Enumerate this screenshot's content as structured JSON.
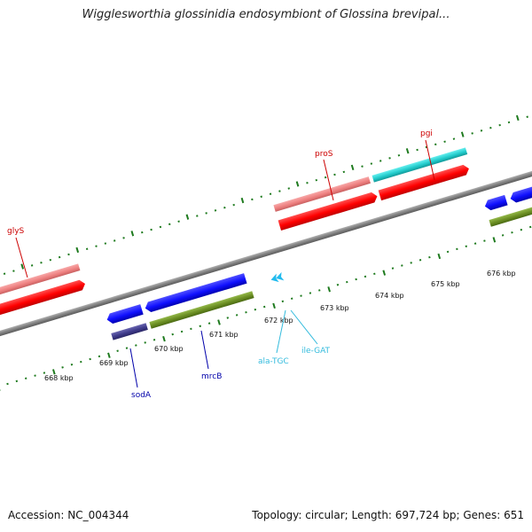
{
  "header": {
    "title": "Wigglesworthia glossinidia endosymbiont of Glossina brevipal..."
  },
  "footer": {
    "accession": "Accession: NC_004344",
    "stats": "Topology: circular; Length: 697,724 bp; Genes: 651"
  },
  "scale": {
    "tick_labels": [
      "668 kbp",
      "669 kbp",
      "670 kbp",
      "671 kbp",
      "672 kbp",
      "673 kbp",
      "674 kbp",
      "675 kbp",
      "676 kbp"
    ]
  },
  "genes": [
    {
      "label": "glyS",
      "strand": "forward",
      "color": "#cc0000"
    },
    {
      "label": "proS",
      "strand": "forward",
      "color": "#cc0000"
    },
    {
      "label": "pgi",
      "strand": "forward",
      "color": "#cc0000"
    },
    {
      "label": "sodA",
      "strand": "reverse",
      "color": "#0000aa"
    },
    {
      "label": "mrcB",
      "strand": "reverse",
      "color": "#0000aa"
    },
    {
      "label": "ala-TGC",
      "strand": "reverse",
      "color": "#33bbdd"
    },
    {
      "label": "ile-GAT",
      "strand": "reverse",
      "color": "#33bbdd"
    }
  ],
  "colors": {
    "backbone": "#808080",
    "tick": "#1e7a1e",
    "cds_forward": "#ff1a1a",
    "cds_forward_light": "#f08888",
    "cds_reverse": "#1a1aff",
    "cds_reverse_dark": "#3e3a8a",
    "gene_olive": "#6b8e23",
    "gene_cyan": "#22cccc",
    "trna": "#33bbdd"
  }
}
